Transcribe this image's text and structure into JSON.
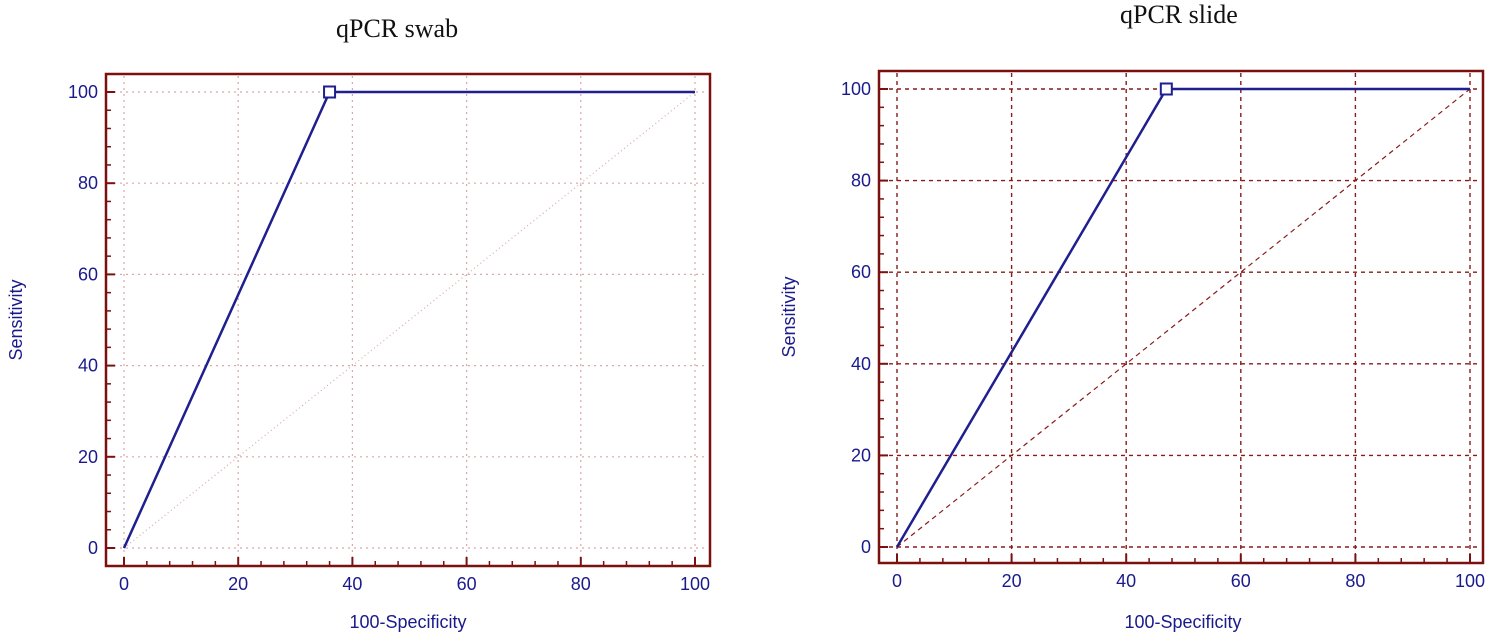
{
  "colors": {
    "frame": "#7a1010",
    "curve": "#1f1f8f",
    "grid_swab": "#d9a8a8",
    "grid_slide": "#8b1a1a",
    "text": "#1a1a8c"
  },
  "chart_data": [
    {
      "type": "line",
      "title": "qPCR swab",
      "xlabel": "100-Specificity",
      "ylabel": "Sensitivity",
      "xlim": [
        0,
        100
      ],
      "ylim": [
        0,
        100
      ],
      "xticks": [
        "0",
        "20",
        "40",
        "60",
        "80",
        "100"
      ],
      "yticks": [
        "0",
        "20",
        "40",
        "60",
        "80",
        "100"
      ],
      "grid": true,
      "series": [
        {
          "values_x": [
            0,
            36,
            100
          ],
          "values_y": [
            0,
            100,
            100
          ]
        }
      ],
      "reference_line": {
        "x": [
          0,
          100
        ],
        "y": [
          0,
          100
        ]
      },
      "marker": {
        "x": 36,
        "y": 100
      }
    },
    {
      "type": "line",
      "title": "qPCR slide",
      "xlabel": "100-Specificity",
      "ylabel": "Sensitivity",
      "xlim": [
        0,
        100
      ],
      "ylim": [
        0,
        100
      ],
      "xticks": [
        "0",
        "20",
        "40",
        "60",
        "80",
        "100"
      ],
      "yticks": [
        "0",
        "20",
        "40",
        "60",
        "80",
        "100"
      ],
      "grid": true,
      "series": [
        {
          "values_x": [
            0,
            47,
            100
          ],
          "values_y": [
            0,
            100,
            100
          ]
        }
      ],
      "reference_line": {
        "x": [
          0,
          100
        ],
        "y": [
          0,
          100
        ]
      },
      "marker": {
        "x": 47,
        "y": 100
      }
    }
  ]
}
